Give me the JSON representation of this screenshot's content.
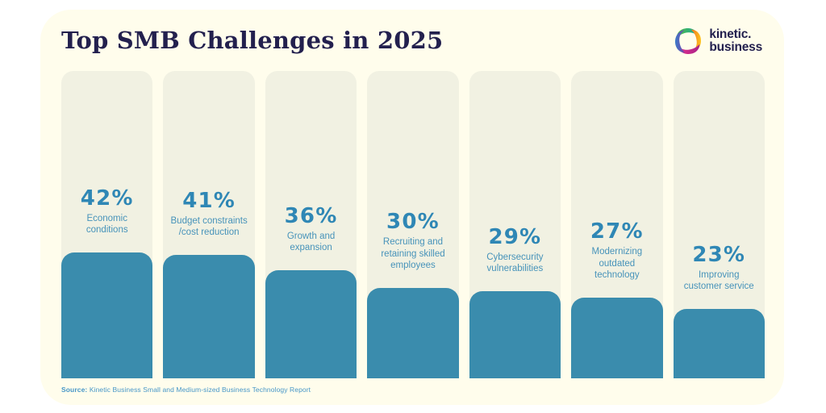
{
  "page": {
    "title": "Top SMB Challenges in 2025"
  },
  "logo": {
    "icon": "kinetic-pinwheel-icon",
    "brand_line1": "kinetic.",
    "brand_line2": "business"
  },
  "source": {
    "label": "Source:",
    "text": " Kinetic Business Small and Medium-sized Business Technology Report"
  },
  "colors": {
    "card_bg": "#FFFDEC",
    "track_bg": "#F1F1E2",
    "bar": "#3A8CAD",
    "pct_text": "#2F87B5",
    "label_text": "#4793BA",
    "navy": "#23204E",
    "source_text": "#4897C8",
    "logo_green": "#56B947",
    "logo_teal": "#12A99D",
    "logo_yellow": "#FDC51E",
    "logo_orange": "#F2711F",
    "logo_pink": "#E8308F",
    "logo_magenta": "#A82287",
    "logo_blue": "#3B7BC8",
    "logo_purple": "#7A3FA8"
  },
  "chart_data": {
    "type": "bar",
    "orientation": "vertical",
    "title": "Top SMB Challenges in 2025",
    "categories": [
      "Economic conditions",
      "Budget constraints /cost reduction",
      "Growth and expansion",
      "Recruiting and retaining skilled employees",
      "Cybersecurity vulnerabilities",
      "Modernizing outdated technology",
      "Improving customer service"
    ],
    "values": [
      42,
      41,
      36,
      30,
      29,
      27,
      23
    ],
    "unit": "%",
    "display_labels": [
      "Economic\nconditions",
      "Budget constraints\n/cost reduction",
      "Growth and\nexpansion",
      "Recruiting and\nretaining skilled\nemployees",
      "Cybersecurity\nvulnerabilities",
      "Modernizing\noutdated\ntechnology",
      "Improving\ncustomer service"
    ],
    "ylim": [
      0,
      45
    ],
    "grid": false,
    "legend": false,
    "value_labels_shown": true,
    "axis_shown": false
  }
}
